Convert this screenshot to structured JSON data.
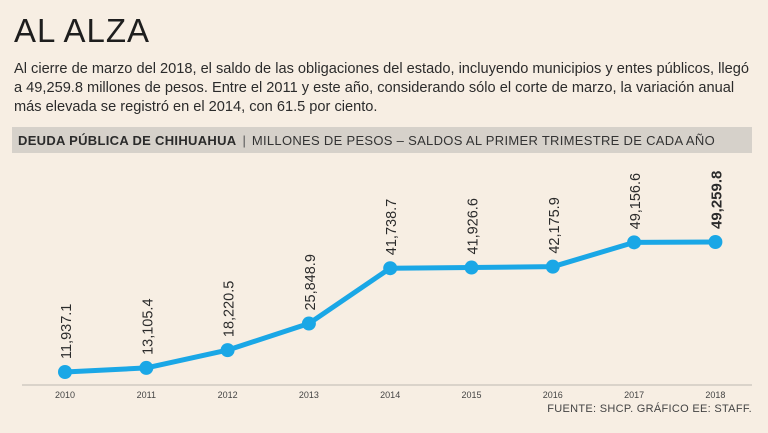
{
  "header": {
    "title": "AL ALZA",
    "intro": "Al cierre de marzo del 2018, el saldo de las obligaciones del estado, incluyendo municipios y entes públicos, llegó a 49,259.8 millones de pesos. Entre el 2011 y este año, considerando sólo el corte de marzo, la variación anual más elevada se registró en el 2014, con 61.5 por ciento."
  },
  "chart_header": {
    "bold": "DEUDA PÚBLICA DE CHIHUAHUA",
    "separator": "|",
    "subtitle": "MILLONES DE PESOS – SALDOS AL  PRIMER TRIMESTRE DE CADA AÑO"
  },
  "source": "FUENTE: SHCP. GRÁFICO EE: STAFF.",
  "colors": {
    "line": "#1aa7e6",
    "header_band": "#d6d1ca",
    "background": "#f7eee3"
  },
  "chart_data": {
    "type": "line",
    "categories": [
      "2010",
      "2011",
      "2012",
      "2013",
      "2014",
      "2015",
      "2016",
      "2017",
      "2018"
    ],
    "values": [
      11937.1,
      13105.4,
      18220.5,
      25848.9,
      41738.7,
      41926.6,
      42175.9,
      49156.6,
      49259.8
    ],
    "labels": [
      "11,937.1",
      "13,105.4",
      "18,220.5",
      "25,848.9",
      "41,738.7",
      "41,926.6",
      "42,175.9",
      "49,156.6",
      "49,259.8"
    ],
    "highlight_index": 8,
    "grid": false,
    "legend": "none"
  }
}
